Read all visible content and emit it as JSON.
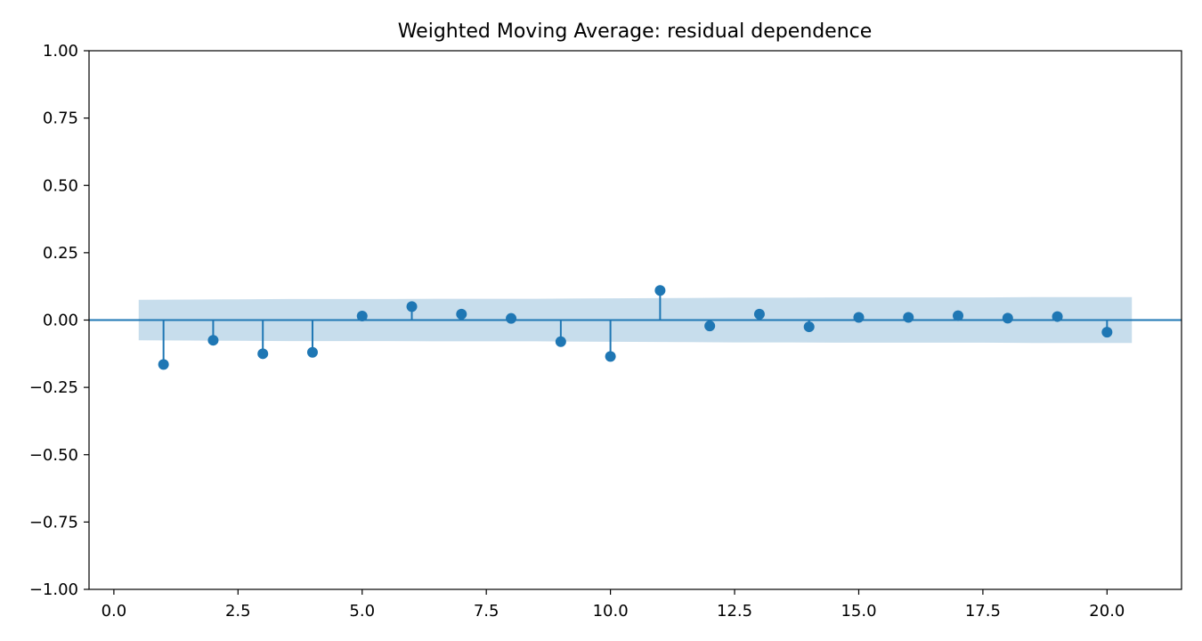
{
  "chart_data": {
    "type": "stem",
    "title": "Weighted Moving Average: residual dependence",
    "xlabel": "",
    "ylabel": "",
    "xlim": [
      -0.5,
      21.5
    ],
    "ylim": [
      -1.0,
      1.0
    ],
    "x_ticks": [
      0.0,
      2.5,
      5.0,
      7.5,
      10.0,
      12.5,
      15.0,
      17.5,
      20.0
    ],
    "x_tick_labels": [
      "0.0",
      "2.5",
      "5.0",
      "7.5",
      "10.0",
      "12.5",
      "15.0",
      "17.5",
      "20.0"
    ],
    "y_ticks": [
      1.0,
      0.75,
      0.5,
      0.25,
      0.0,
      -0.25,
      -0.5,
      -0.75,
      -1.0
    ],
    "y_tick_labels": [
      "1.00",
      "0.75",
      "0.50",
      "0.25",
      "0.00",
      "−0.25",
      "−0.50",
      "−0.75",
      "−1.00"
    ],
    "grid": false,
    "lags": [
      1,
      2,
      3,
      4,
      5,
      6,
      7,
      8,
      9,
      10,
      11,
      12,
      13,
      14,
      15,
      16,
      17,
      18,
      19,
      20
    ],
    "values": [
      -0.165,
      -0.075,
      -0.125,
      -0.12,
      0.015,
      0.05,
      0.022,
      0.006,
      -0.08,
      -0.135,
      0.11,
      -0.022,
      0.022,
      -0.025,
      0.01,
      0.01,
      0.016,
      0.007,
      0.013,
      -0.045
    ],
    "confidence_band": {
      "x_range": [
        0.5,
        20.5
      ],
      "upper": [
        0.075,
        0.076,
        0.077,
        0.078,
        0.078,
        0.078,
        0.079,
        0.079,
        0.079,
        0.08,
        0.081,
        0.082,
        0.083,
        0.083,
        0.084,
        0.084,
        0.084,
        0.084,
        0.085,
        0.085,
        0.085
      ],
      "lower": [
        -0.075,
        -0.076,
        -0.077,
        -0.078,
        -0.078,
        -0.078,
        -0.079,
        -0.079,
        -0.079,
        -0.08,
        -0.081,
        -0.082,
        -0.083,
        -0.083,
        -0.084,
        -0.084,
        -0.084,
        -0.084,
        -0.085,
        -0.085,
        -0.085
      ]
    },
    "colors": {
      "stem": "#1f77b4",
      "band": "#1f77b4",
      "zero_line": "#1f77b4",
      "axes": "#000000"
    }
  }
}
